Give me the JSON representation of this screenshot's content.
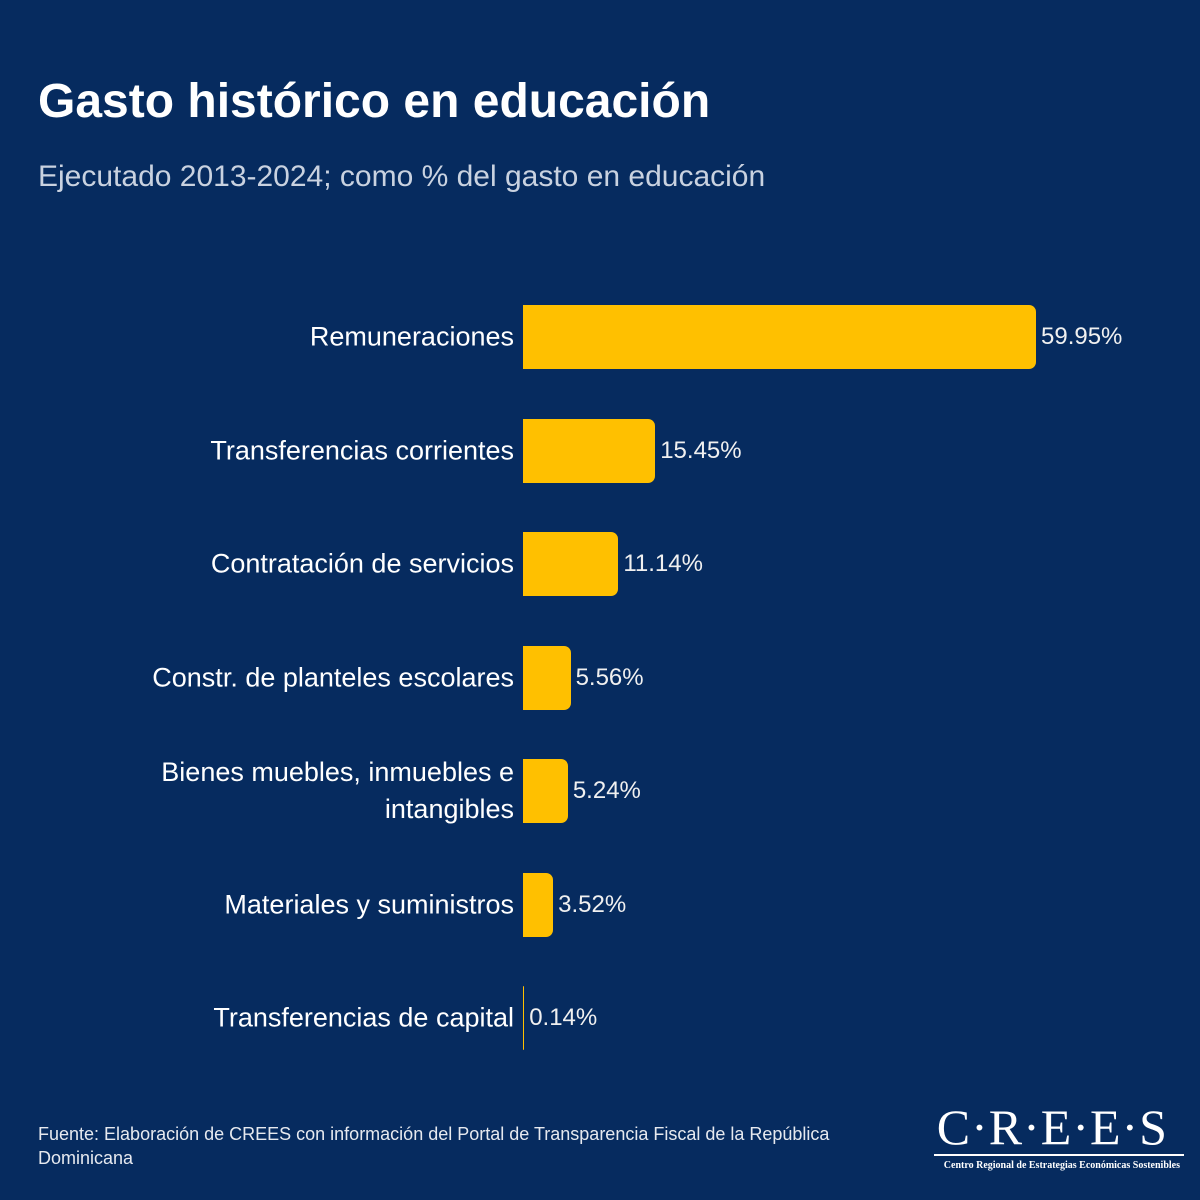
{
  "chart_data": {
    "type": "hbar",
    "title": "Gasto histórico en educación",
    "subtitle": "Ejecutado 2013-2024; como % del gasto en educación",
    "categories": [
      "Remuneraciones",
      "Transferencias corrientes",
      "Contratación de servicios",
      "Constr. de planteles escolares",
      "Bienes muebles, inmuebles e intangibles",
      "Materiales y suministros",
      "Transferencias de capital"
    ],
    "values": [
      59.95,
      15.45,
      11.14,
      5.56,
      5.24,
      3.52,
      0.14
    ],
    "value_labels": [
      "59.95%",
      "15.45%",
      "11.14%",
      "5.56%",
      "5.24%",
      "3.52%",
      "0.14%"
    ],
    "color": "#ffc000",
    "source": "Fuente: Elaboración de CREES con información del Portal de Transparencia Fiscal de la República Dominicana"
  },
  "logo": {
    "name": "C·R·E·E·S",
    "tagline": "Centro Regional de Estrategias Económicas Sostenibles"
  }
}
